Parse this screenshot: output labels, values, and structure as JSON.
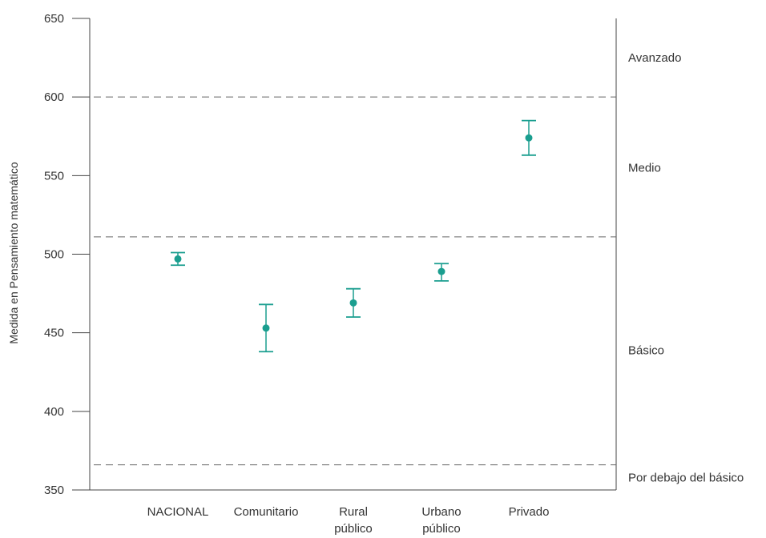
{
  "chart_data": {
    "type": "scatter",
    "ylabel": "Medida en Pensamiento matemático",
    "ylim": [
      350,
      650
    ],
    "yticks": [
      350,
      400,
      450,
      500,
      550,
      600,
      650
    ],
    "grid": false,
    "color": "#1a9e8f",
    "categories": [
      [
        "NACIONAL"
      ],
      [
        "Comunitario"
      ],
      [
        "Rural",
        "público"
      ],
      [
        "Urbano",
        "público"
      ],
      [
        "Privado"
      ]
    ],
    "points": [
      {
        "mean": 497,
        "low": 493,
        "high": 501
      },
      {
        "mean": 453,
        "low": 438,
        "high": 468
      },
      {
        "mean": 469,
        "low": 460,
        "high": 478
      },
      {
        "mean": 489,
        "low": 483,
        "high": 494
      },
      {
        "mean": 574,
        "low": 563,
        "high": 585
      }
    ],
    "thresholds": [
      600,
      511,
      366
    ],
    "levels": [
      {
        "label": "Avanzado",
        "y": 625
      },
      {
        "label": "Medio",
        "y": 555
      },
      {
        "label": "Básico",
        "y": 439
      },
      {
        "label": "Por debajo del básico",
        "y": 358
      }
    ]
  }
}
